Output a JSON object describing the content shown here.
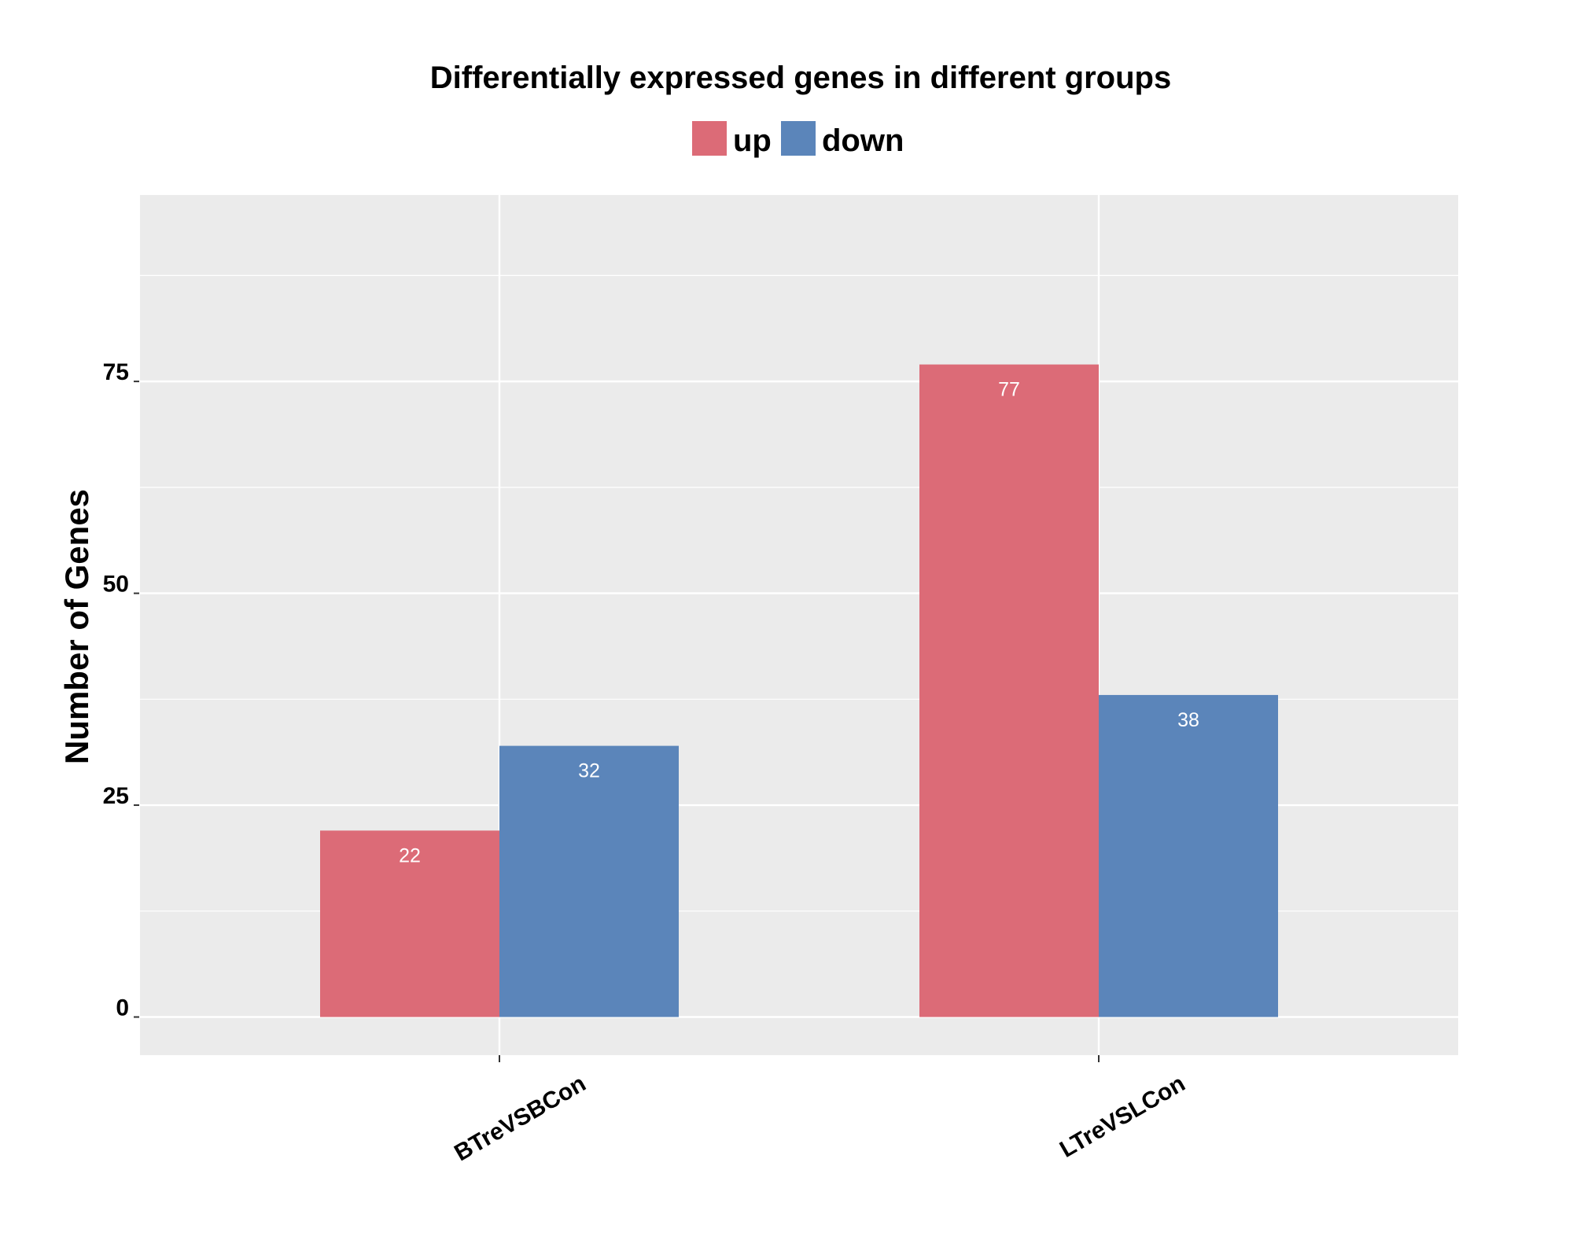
{
  "chart_data": {
    "type": "bar",
    "title": "Differentially expressed genes in different groups",
    "xlabel": "",
    "ylabel": "Number of Genes",
    "categories": [
      "BTreVSBCon",
      "LTreVSLCon"
    ],
    "series": [
      {
        "name": "up",
        "values": [
          22,
          77
        ],
        "color": "#dc6b77"
      },
      {
        "name": "down",
        "values": [
          32,
          38
        ],
        "color": "#5b85ba"
      }
    ],
    "data_labels": [
      [
        "22",
        "77"
      ],
      [
        "32",
        "38"
      ]
    ],
    "yticks": [
      0,
      25,
      50,
      75
    ],
    "ylim": [
      -4.5,
      97
    ],
    "grid": true,
    "legend_position": "top",
    "panel_background": "#ebebeb",
    "grid_color": "#ffffff"
  }
}
